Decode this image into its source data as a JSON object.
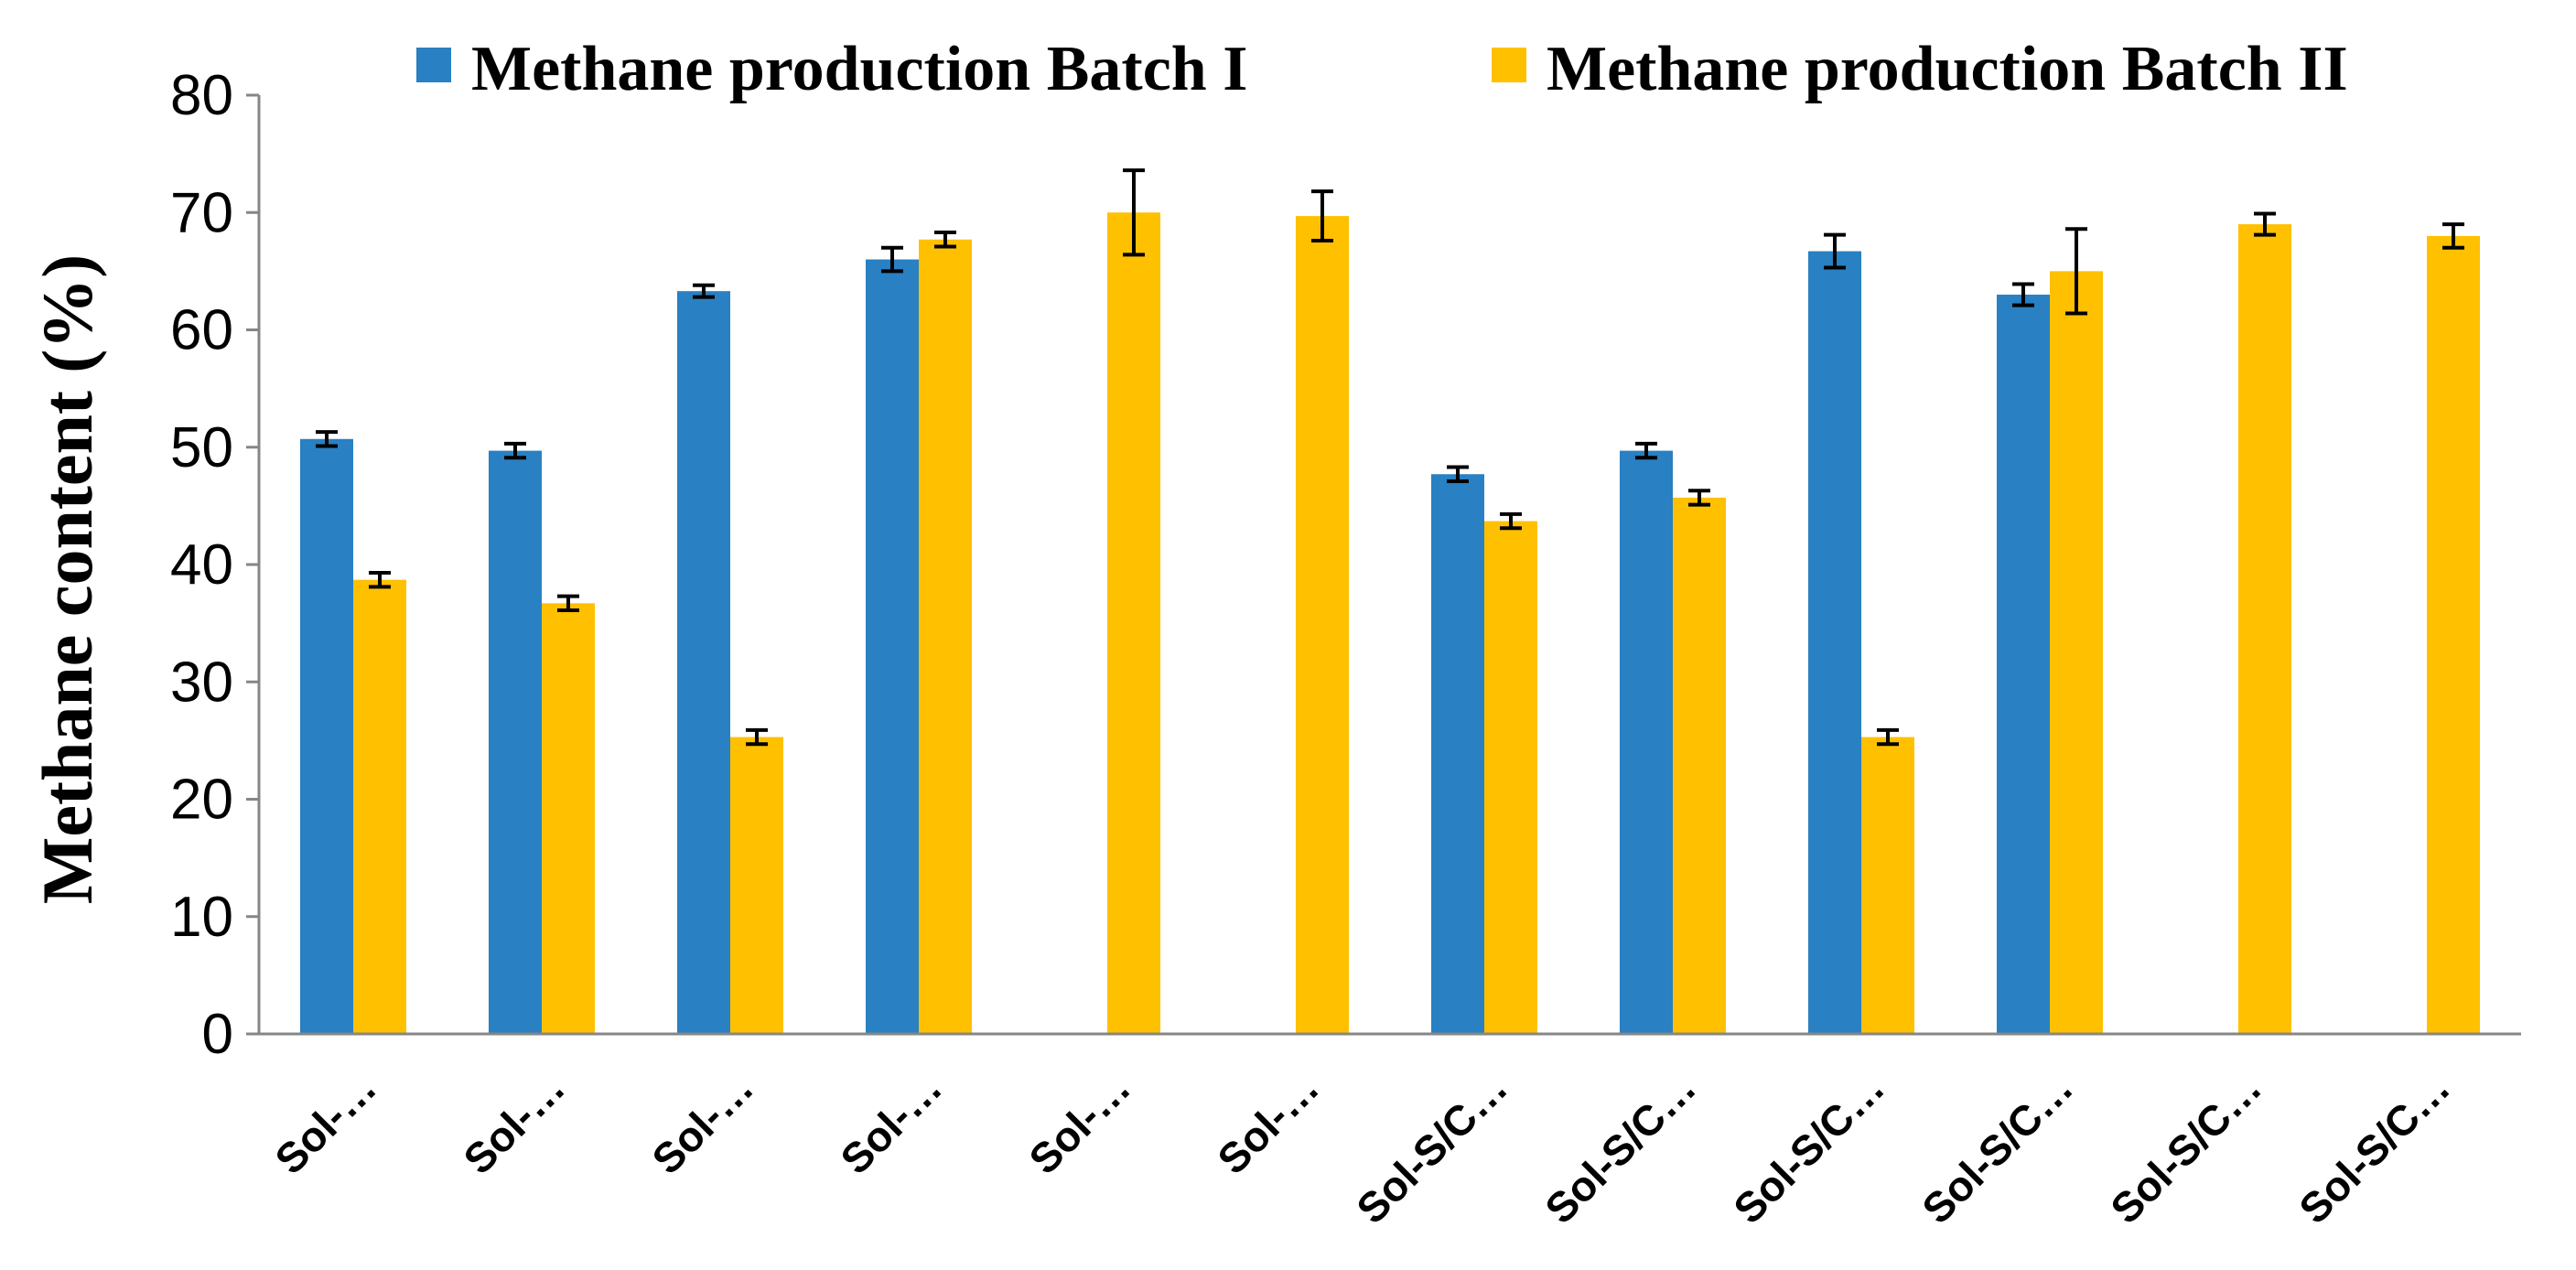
{
  "chart_data": {
    "type": "bar",
    "title": "",
    "xlabel": "",
    "ylabel": "Methane content (%)",
    "ylim": [
      0,
      80
    ],
    "yticks": [
      0,
      10,
      20,
      30,
      40,
      50,
      60,
      70,
      80
    ],
    "grid": false,
    "legend_position": "top",
    "categories": [
      "Sol-…",
      "Sol-…",
      "Sol-…",
      "Sol-…",
      "Sol-…",
      "Sol-…",
      "Sol-S/C…",
      "Sol-S/C…",
      "Sol-S/C…",
      "Sol-S/C…",
      "Sol-S/C…",
      "Sol-S/C…"
    ],
    "series": [
      {
        "name": "Methane production Batch I",
        "color": "#2980C2",
        "values": [
          50.7,
          49.7,
          63.3,
          66.0,
          null,
          null,
          47.7,
          49.7,
          66.7,
          63.0,
          null,
          null
        ],
        "errors": [
          0.6,
          0.6,
          0.5,
          1.0,
          null,
          null,
          0.6,
          0.6,
          1.4,
          0.9,
          null,
          null
        ]
      },
      {
        "name": "Methane production Batch II",
        "color": "#FFC000",
        "values": [
          38.7,
          36.7,
          25.3,
          67.7,
          70.0,
          69.7,
          43.7,
          45.7,
          25.3,
          65.0,
          69.0,
          68.0
        ],
        "errors": [
          0.6,
          0.6,
          0.6,
          0.6,
          3.6,
          2.1,
          0.6,
          0.6,
          0.6,
          3.6,
          0.9,
          1.0
        ]
      }
    ]
  }
}
